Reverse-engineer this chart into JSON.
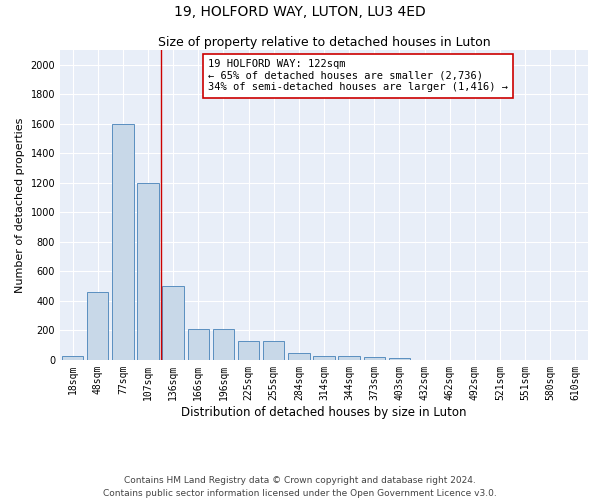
{
  "title1": "19, HOLFORD WAY, LUTON, LU3 4ED",
  "title2": "Size of property relative to detached houses in Luton",
  "xlabel": "Distribution of detached houses by size in Luton",
  "ylabel": "Number of detached properties",
  "categories": [
    "18sqm",
    "48sqm",
    "77sqm",
    "107sqm",
    "136sqm",
    "166sqm",
    "196sqm",
    "225sqm",
    "255sqm",
    "284sqm",
    "314sqm",
    "344sqm",
    "373sqm",
    "403sqm",
    "432sqm",
    "462sqm",
    "492sqm",
    "521sqm",
    "551sqm",
    "580sqm",
    "610sqm"
  ],
  "values": [
    30,
    460,
    1600,
    1200,
    500,
    210,
    210,
    130,
    130,
    50,
    30,
    25,
    20,
    15,
    0,
    0,
    0,
    0,
    0,
    0,
    0
  ],
  "bar_color": "#c8d8e8",
  "bar_edge_color": "#5a8fc0",
  "background_color": "#e8eef8",
  "grid_color": "#ffffff",
  "red_line_x": 3.52,
  "red_line_color": "#cc0000",
  "annotation_text": "19 HOLFORD WAY: 122sqm\n← 65% of detached houses are smaller (2,736)\n34% of semi-detached houses are larger (1,416) →",
  "annotation_box_color": "#ffffff",
  "annotation_box_edge_color": "#cc0000",
  "ylim": [
    0,
    2100
  ],
  "yticks": [
    0,
    200,
    400,
    600,
    800,
    1000,
    1200,
    1400,
    1600,
    1800,
    2000
  ],
  "footer": "Contains HM Land Registry data © Crown copyright and database right 2024.\nContains public sector information licensed under the Open Government Licence v3.0.",
  "title1_fontsize": 10,
  "title2_fontsize": 9,
  "xlabel_fontsize": 8.5,
  "ylabel_fontsize": 8,
  "tick_fontsize": 7,
  "annotation_fontsize": 7.5,
  "footer_fontsize": 6.5
}
